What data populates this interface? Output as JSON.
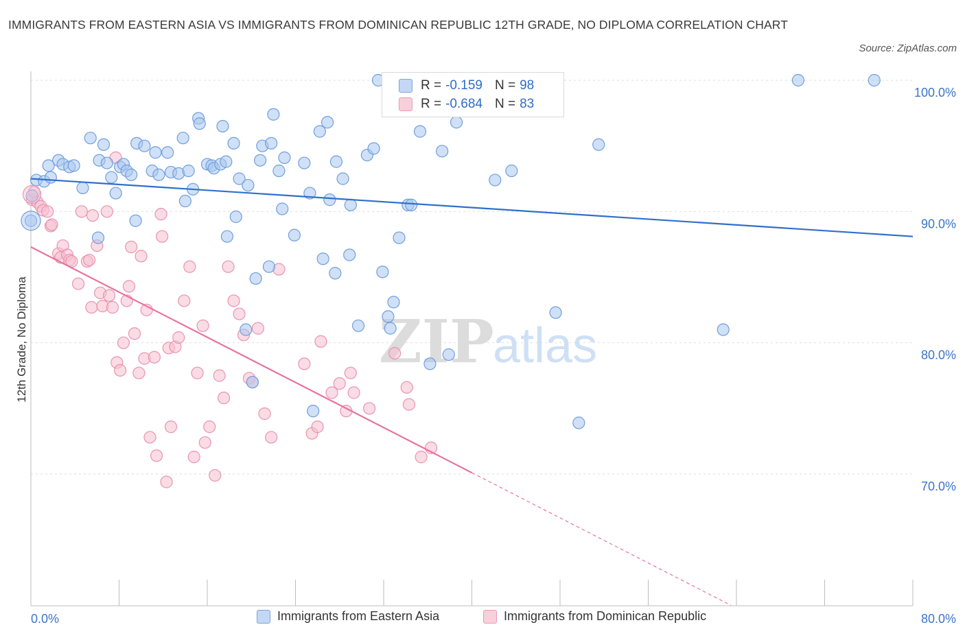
{
  "title": "IMMIGRANTS FROM EASTERN ASIA VS IMMIGRANTS FROM DOMINICAN REPUBLIC 12TH GRADE, NO DIPLOMA CORRELATION CHART",
  "source": "Source: ZipAtlas.com",
  "watermark": {
    "zip": "ZIP",
    "atlas": "atlas"
  },
  "colors": {
    "blue_fill": "#a9c6ef",
    "blue_stroke": "#6f9fdd",
    "blue_line": "#2f6fca",
    "pink_fill": "#f6bfd0",
    "pink_stroke": "#e993b0",
    "pink_line": "#e8739c",
    "axis_label": "#3b74c9"
  },
  "stats": {
    "blue": {
      "r_label": "R =",
      "r_value": "-0.159",
      "n_label": "N =",
      "n_value": "98"
    },
    "pink": {
      "r_label": "R =",
      "r_value": "-0.684",
      "n_label": "N =",
      "n_value": "83"
    }
  },
  "chart_data": {
    "type": "scatter",
    "title": "IMMIGRANTS FROM EASTERN ASIA VS IMMIGRANTS FROM DOMINICAN REPUBLIC 12TH GRADE, NO DIPLOMA CORRELATION CHART",
    "xlabel": "",
    "ylabel": "12th Grade, No Diploma",
    "xlim": [
      0,
      80
    ],
    "ylim": [
      60,
      100
    ],
    "x_tick_labels": [
      "0.0%",
      "80.0%"
    ],
    "y_ticks": [
      70,
      80,
      90,
      100
    ],
    "y_tick_labels": [
      "70.0%",
      "80.0%",
      "90.0%",
      "100.0%"
    ],
    "grid": true,
    "legend": {
      "position": "bottom",
      "entries": [
        "Immigrants from Eastern Asia",
        "Immigrants from Dominican Republic"
      ]
    },
    "series": [
      {
        "name": "Immigrants from Eastern Asia",
        "color": "#a9c6ef",
        "trend": {
          "x": [
            0,
            80
          ],
          "y": [
            92.5,
            88.1
          ]
        },
        "points": [
          [
            0.0,
            89.3
          ],
          [
            0.1,
            91.2
          ],
          [
            0.5,
            92.4
          ],
          [
            1.2,
            92.3
          ],
          [
            1.6,
            93.5
          ],
          [
            1.8,
            92.6
          ],
          [
            2.5,
            93.9
          ],
          [
            2.9,
            93.6
          ],
          [
            3.5,
            93.4
          ],
          [
            3.9,
            93.5
          ],
          [
            4.7,
            91.8
          ],
          [
            5.4,
            95.6
          ],
          [
            6.1,
            88.0
          ],
          [
            6.2,
            93.9
          ],
          [
            6.6,
            95.1
          ],
          [
            6.9,
            93.7
          ],
          [
            7.3,
            92.6
          ],
          [
            7.7,
            91.4
          ],
          [
            8.1,
            93.4
          ],
          [
            8.4,
            93.6
          ],
          [
            8.7,
            93.1
          ],
          [
            9.1,
            92.8
          ],
          [
            9.5,
            89.3
          ],
          [
            9.6,
            95.2
          ],
          [
            10.3,
            95.0
          ],
          [
            11.0,
            93.1
          ],
          [
            11.3,
            94.5
          ],
          [
            11.6,
            92.8
          ],
          [
            12.4,
            94.5
          ],
          [
            12.7,
            93.0
          ],
          [
            13.4,
            92.9
          ],
          [
            13.8,
            95.6
          ],
          [
            14.3,
            93.1
          ],
          [
            14.0,
            90.8
          ],
          [
            14.7,
            91.7
          ],
          [
            15.2,
            97.1
          ],
          [
            15.3,
            96.7
          ],
          [
            16.0,
            93.6
          ],
          [
            16.4,
            93.5
          ],
          [
            16.6,
            93.3
          ],
          [
            17.2,
            93.6
          ],
          [
            17.4,
            96.5
          ],
          [
            17.8,
            88.1
          ],
          [
            17.7,
            93.8
          ],
          [
            18.4,
            95.2
          ],
          [
            18.6,
            89.6
          ],
          [
            18.9,
            92.5
          ],
          [
            19.7,
            92.0
          ],
          [
            19.5,
            81.0
          ],
          [
            20.1,
            77.0
          ],
          [
            20.4,
            84.9
          ],
          [
            20.8,
            93.9
          ],
          [
            21.0,
            95.0
          ],
          [
            21.8,
            95.2
          ],
          [
            21.6,
            85.8
          ],
          [
            22.0,
            97.4
          ],
          [
            22.5,
            93.1
          ],
          [
            22.8,
            90.2
          ],
          [
            23.0,
            94.1
          ],
          [
            23.9,
            88.2
          ],
          [
            24.8,
            93.7
          ],
          [
            25.3,
            91.4
          ],
          [
            25.6,
            74.8
          ],
          [
            26.2,
            96.1
          ],
          [
            26.5,
            86.4
          ],
          [
            27.1,
            90.9
          ],
          [
            27.7,
            93.8
          ],
          [
            27.6,
            85.3
          ],
          [
            28.3,
            92.5
          ],
          [
            28.9,
            86.7
          ],
          [
            29.0,
            90.5
          ],
          [
            29.7,
            81.3
          ],
          [
            30.5,
            94.3
          ],
          [
            31.1,
            94.8
          ],
          [
            31.9,
            85.4
          ],
          [
            32.4,
            82.0
          ],
          [
            32.6,
            81.1
          ],
          [
            32.9,
            83.1
          ],
          [
            33.4,
            88.0
          ],
          [
            34.2,
            90.5
          ],
          [
            34.5,
            90.5
          ],
          [
            35.3,
            96.1
          ],
          [
            36.2,
            78.4
          ],
          [
            37.3,
            94.6
          ],
          [
            37.9,
            79.1
          ],
          [
            38.6,
            96.8
          ],
          [
            42.1,
            92.4
          ],
          [
            43.6,
            93.1
          ],
          [
            47.6,
            82.3
          ],
          [
            49.7,
            73.9
          ],
          [
            51.5,
            95.1
          ],
          [
            62.8,
            81.0
          ],
          [
            69.6,
            100.0
          ],
          [
            76.5,
            100.0
          ],
          [
            31.5,
            100.0
          ],
          [
            34.4,
            100.0
          ],
          [
            43.2,
            100.0
          ],
          [
            26.9,
            96.8
          ]
        ]
      },
      {
        "name": "Immigrants from Dominican Republic",
        "color": "#f6bfd0",
        "trend": {
          "x": [
            0,
            40
          ],
          "y": [
            87.3,
            70.1
          ]
        },
        "trend_dashed": {
          "x": [
            40,
            63.5
          ],
          "y": [
            70.1,
            60.0
          ]
        },
        "points": [
          [
            0.1,
            90.9
          ],
          [
            0.3,
            91.5
          ],
          [
            0.6,
            90.7
          ],
          [
            0.9,
            90.4
          ],
          [
            1.1,
            90.1
          ],
          [
            1.5,
            90.0
          ],
          [
            1.8,
            88.9
          ],
          [
            1.9,
            89.0
          ],
          [
            2.5,
            86.8
          ],
          [
            2.7,
            86.5
          ],
          [
            2.9,
            87.4
          ],
          [
            3.3,
            86.7
          ],
          [
            3.5,
            86.3
          ],
          [
            3.7,
            86.2
          ],
          [
            4.3,
            84.5
          ],
          [
            4.6,
            90.0
          ],
          [
            5.1,
            86.2
          ],
          [
            5.3,
            86.3
          ],
          [
            5.5,
            82.7
          ],
          [
            5.6,
            89.7
          ],
          [
            6.0,
            87.4
          ],
          [
            6.3,
            83.8
          ],
          [
            6.5,
            82.8
          ],
          [
            6.9,
            90.0
          ],
          [
            7.1,
            83.6
          ],
          [
            7.4,
            82.7
          ],
          [
            7.7,
            94.1
          ],
          [
            7.8,
            78.5
          ],
          [
            8.1,
            77.9
          ],
          [
            8.4,
            80.0
          ],
          [
            8.7,
            83.2
          ],
          [
            8.9,
            84.3
          ],
          [
            9.1,
            87.3
          ],
          [
            9.4,
            80.7
          ],
          [
            9.8,
            77.7
          ],
          [
            10.0,
            86.6
          ],
          [
            10.3,
            78.8
          ],
          [
            10.5,
            82.5
          ],
          [
            10.8,
            72.8
          ],
          [
            11.2,
            78.9
          ],
          [
            11.4,
            71.4
          ],
          [
            11.8,
            89.8
          ],
          [
            11.9,
            88.1
          ],
          [
            12.3,
            69.4
          ],
          [
            12.5,
            79.6
          ],
          [
            12.7,
            73.6
          ],
          [
            13.1,
            79.7
          ],
          [
            13.4,
            80.4
          ],
          [
            13.9,
            83.2
          ],
          [
            14.4,
            85.8
          ],
          [
            14.8,
            71.3
          ],
          [
            15.1,
            77.7
          ],
          [
            15.6,
            81.3
          ],
          [
            15.8,
            72.4
          ],
          [
            16.2,
            73.6
          ],
          [
            16.7,
            69.9
          ],
          [
            17.1,
            77.5
          ],
          [
            17.5,
            75.8
          ],
          [
            17.9,
            85.8
          ],
          [
            18.4,
            83.2
          ],
          [
            18.9,
            82.2
          ],
          [
            19.3,
            80.6
          ],
          [
            19.8,
            77.3
          ],
          [
            20.1,
            77.0
          ],
          [
            20.6,
            81.1
          ],
          [
            21.2,
            74.6
          ],
          [
            21.8,
            72.8
          ],
          [
            22.5,
            85.6
          ],
          [
            24.8,
            78.4
          ],
          [
            25.5,
            73.1
          ],
          [
            26.0,
            73.6
          ],
          [
            26.3,
            80.1
          ],
          [
            27.3,
            76.2
          ],
          [
            28.0,
            76.9
          ],
          [
            28.6,
            74.8
          ],
          [
            29.0,
            77.7
          ],
          [
            29.3,
            76.2
          ],
          [
            30.7,
            75.0
          ],
          [
            33.0,
            79.2
          ],
          [
            34.1,
            76.6
          ],
          [
            34.3,
            75.3
          ],
          [
            35.4,
            71.3
          ],
          [
            36.3,
            72.0
          ]
        ]
      }
    ]
  }
}
